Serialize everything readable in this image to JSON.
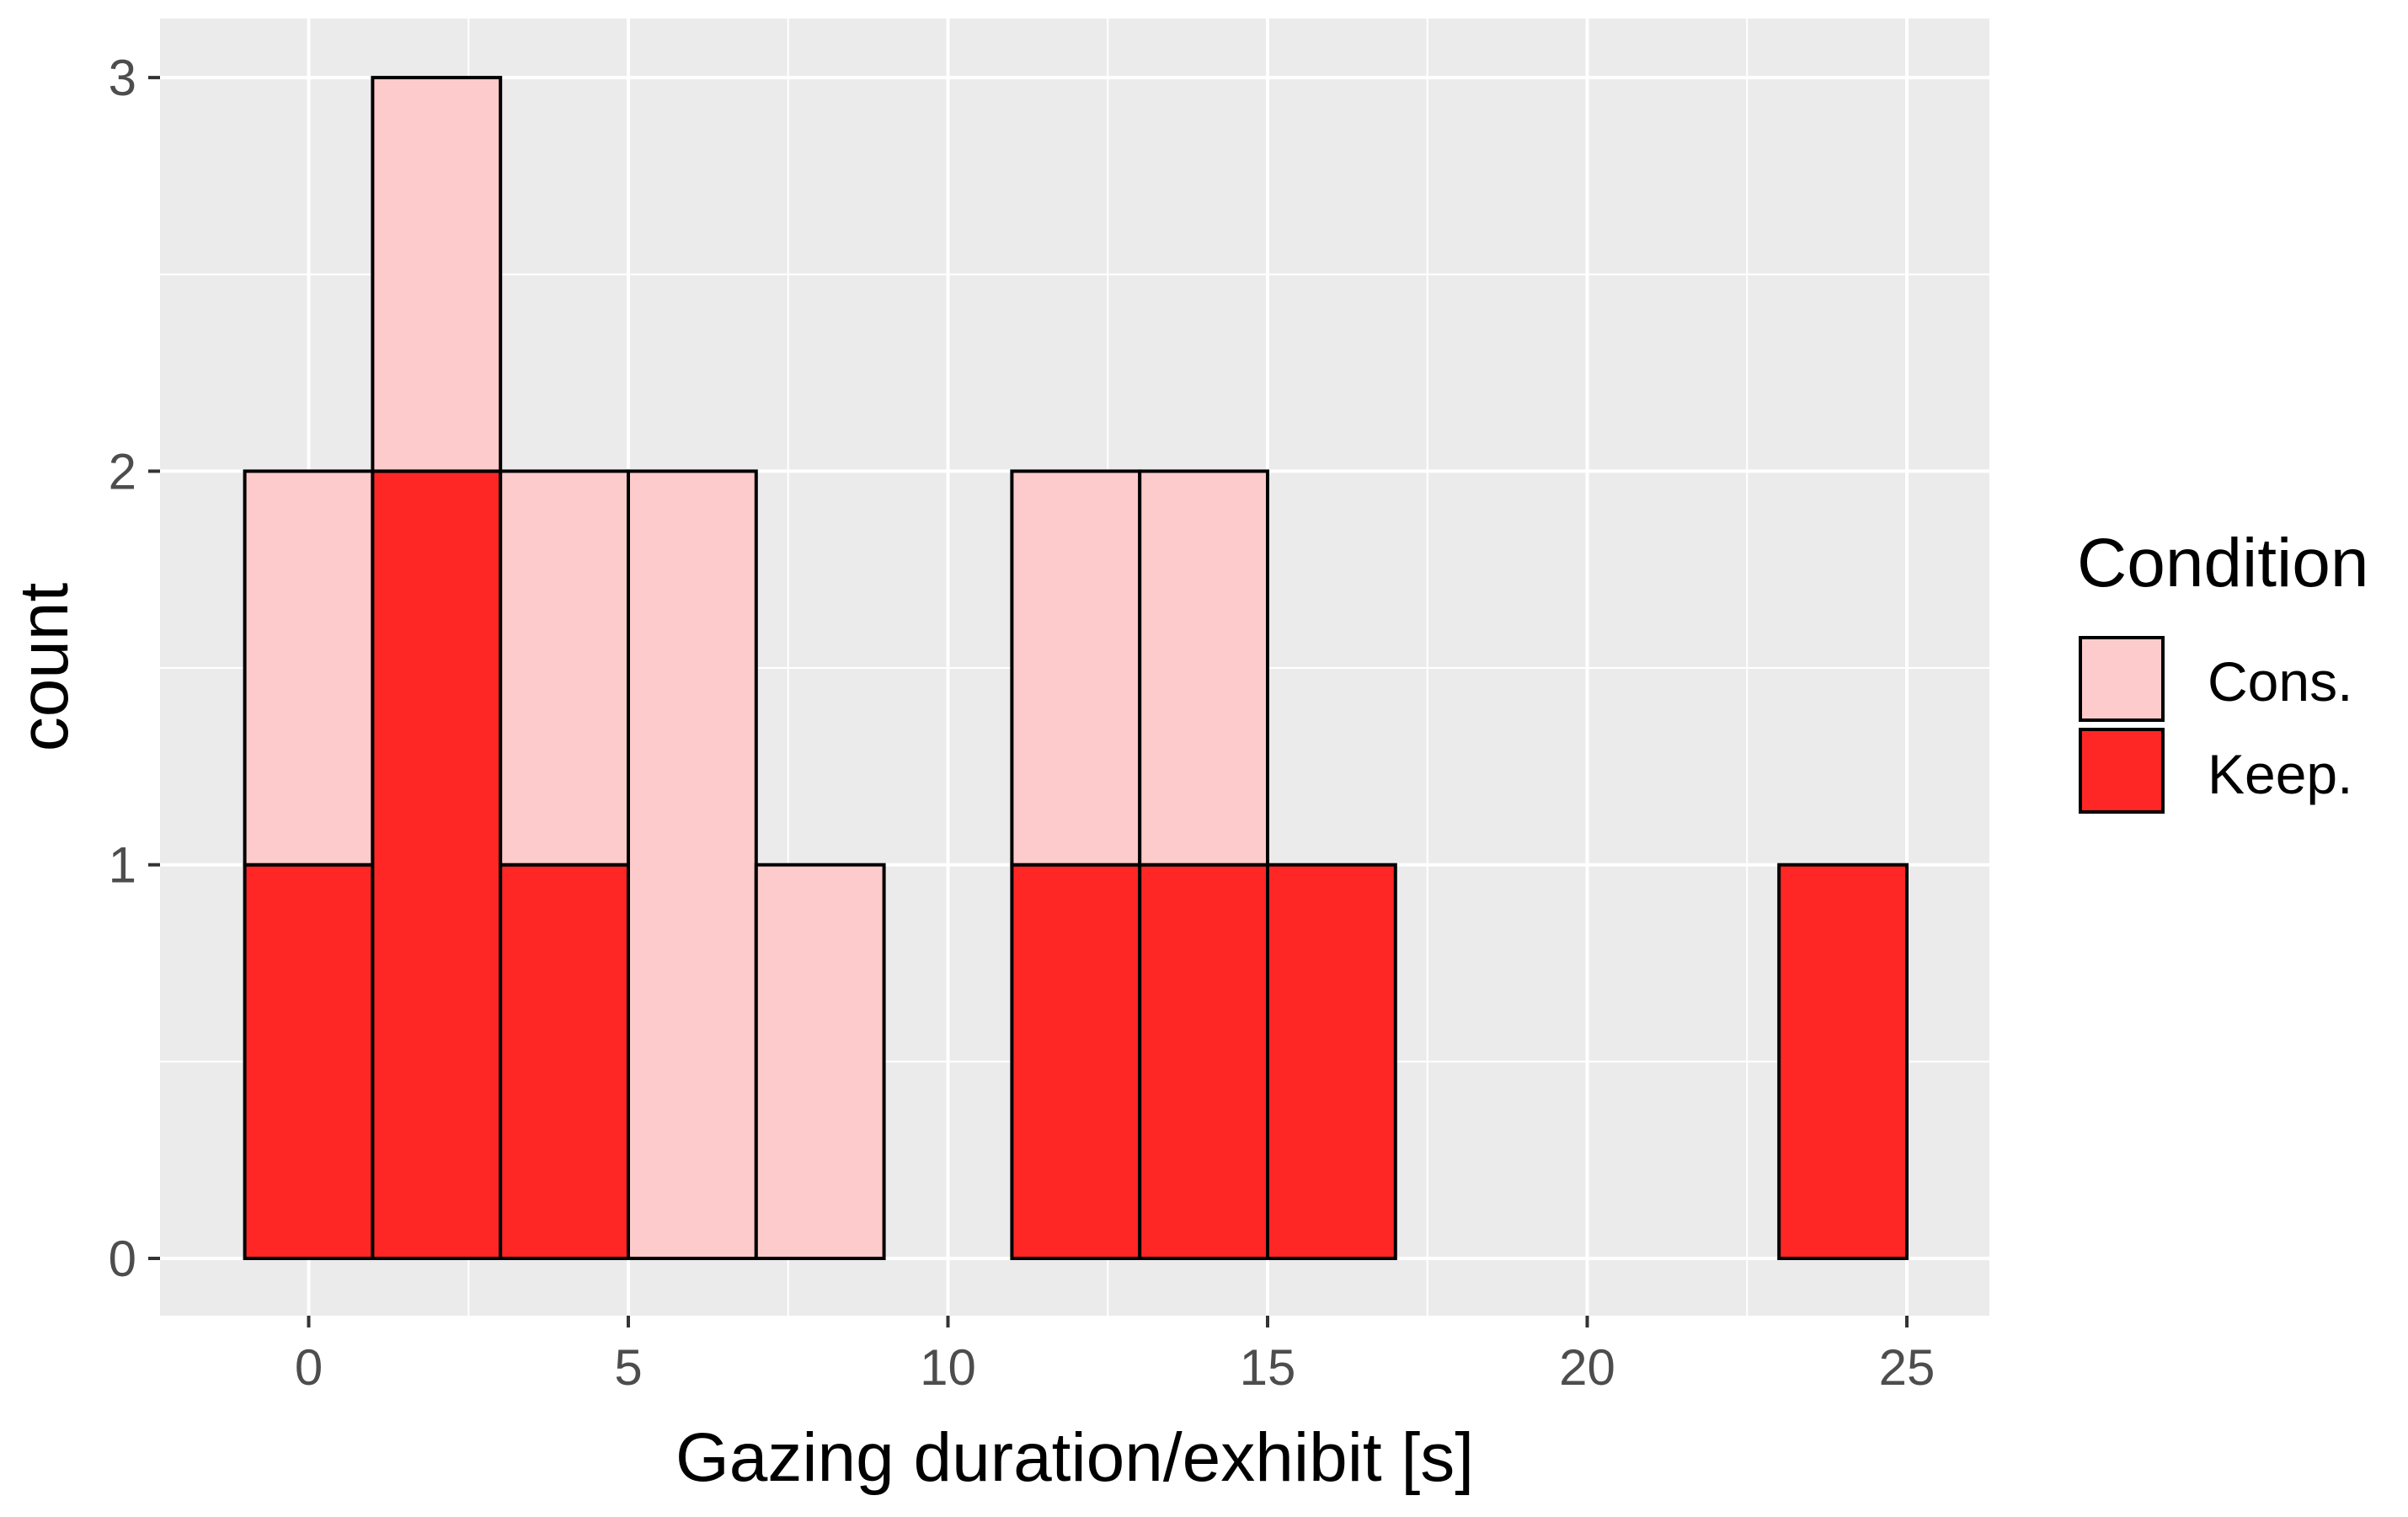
{
  "chart_data": {
    "type": "bar",
    "subtype": "stacked-histogram",
    "title": "",
    "xlabel": "Gazing duration/exhibit [s]",
    "ylabel": "count",
    "xlim": [
      -2.3,
      26.3
    ],
    "ylim": [
      0,
      3.15
    ],
    "bin_width": 2,
    "xticks": [
      0,
      5,
      10,
      15,
      20,
      25
    ],
    "yticks": [
      0,
      1,
      2,
      3
    ],
    "grid": true,
    "bin_centers": [
      0,
      2,
      4,
      6,
      8,
      10,
      12,
      14,
      16,
      18,
      20,
      22,
      24
    ],
    "series": [
      {
        "name": "Keep.",
        "color": "#ff2626",
        "values": [
          1,
          2,
          1,
          0,
          0,
          0,
          1,
          1,
          1,
          0,
          0,
          0,
          1
        ]
      },
      {
        "name": "Cons.",
        "color": "#fdcbcb",
        "values": [
          1,
          1,
          1,
          2,
          1,
          0,
          1,
          1,
          0,
          0,
          0,
          0,
          0
        ]
      }
    ],
    "legend": {
      "title": "Condition",
      "position": "right",
      "entries": [
        {
          "label": "Cons.",
          "color": "#fdcbcb"
        },
        {
          "label": "Keep.",
          "color": "#ff2626"
        }
      ]
    }
  }
}
